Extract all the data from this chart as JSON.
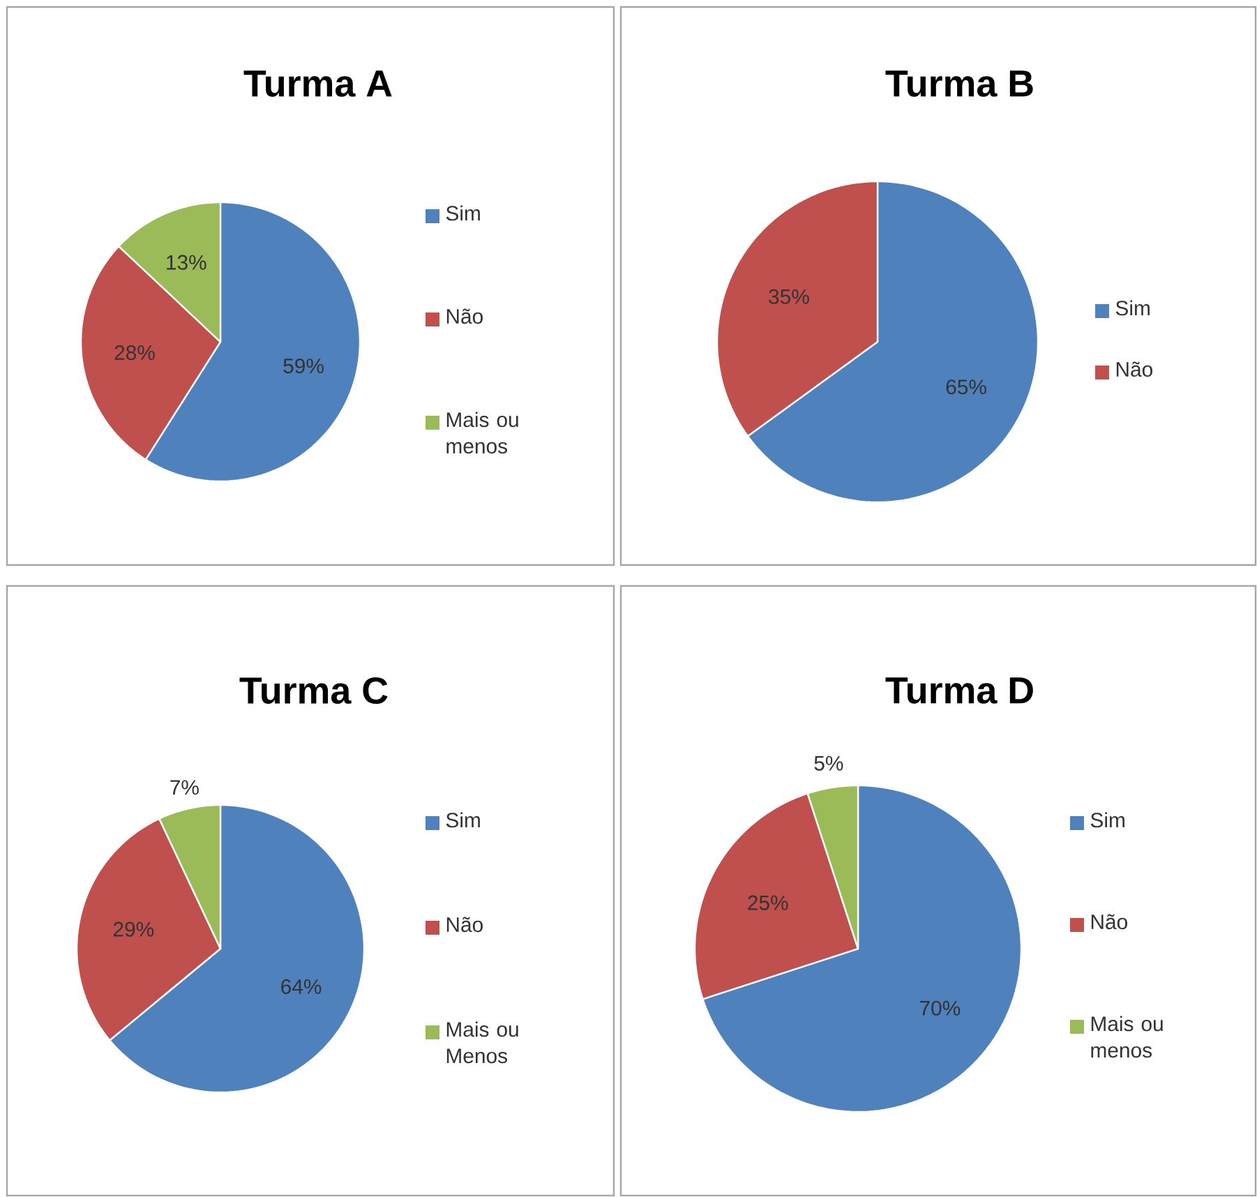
{
  "chart_data": [
    {
      "type": "pie",
      "title": "Turma A",
      "categories": [
        "Sim",
        "Não",
        "Mais ou menos"
      ],
      "values": [
        59,
        28,
        13
      ],
      "colors": [
        "#4f81bd",
        "#c0504d",
        "#9bbb59"
      ],
      "value_labels": [
        "59%",
        "28%",
        "13%"
      ],
      "legend": "right"
    },
    {
      "type": "pie",
      "title": "Turma B",
      "categories": [
        "Sim",
        "Não"
      ],
      "values": [
        65,
        35
      ],
      "colors": [
        "#4f81bd",
        "#c0504d"
      ],
      "value_labels": [
        "65%",
        "35%"
      ],
      "legend": "right"
    },
    {
      "type": "pie",
      "title": "Turma C",
      "categories": [
        "Sim",
        "Não",
        "Mais ou Menos"
      ],
      "values": [
        64,
        29,
        7
      ],
      "colors": [
        "#4f81bd",
        "#c0504d",
        "#9bbb59"
      ],
      "value_labels": [
        "64%",
        "29%",
        "7%"
      ],
      "legend": "right"
    },
    {
      "type": "pie",
      "title": "Turma D",
      "categories": [
        "Sim",
        "Não",
        "Mais ou menos"
      ],
      "values": [
        70,
        25,
        5
      ],
      "colors": [
        "#4f81bd",
        "#c0504d",
        "#9bbb59"
      ],
      "value_labels": [
        "70%",
        "25%",
        "5%"
      ],
      "legend": "right"
    }
  ]
}
